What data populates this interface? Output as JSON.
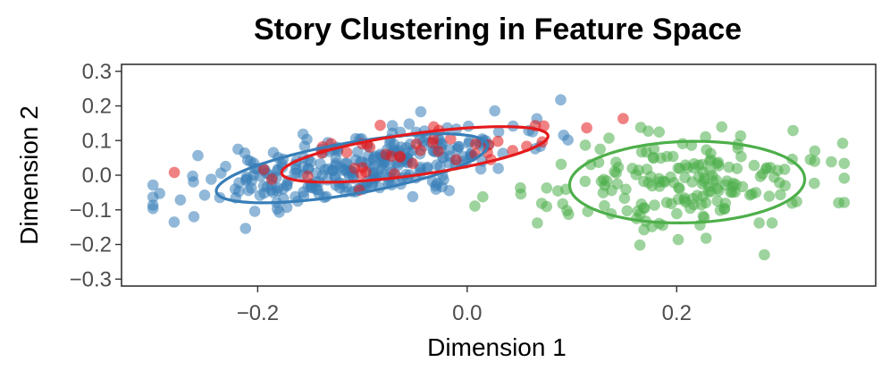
{
  "chart_data": {
    "type": "scatter",
    "title": "Story Clustering in Feature Space",
    "xlabel": "Dimension 1",
    "ylabel": "Dimension 2",
    "xlim": [
      -0.33,
      0.39
    ],
    "ylim": [
      -0.32,
      0.32
    ],
    "x_ticks": [
      -0.2,
      0.0,
      0.2
    ],
    "x_tick_labels": [
      "−0.2",
      "0.0",
      "0.2"
    ],
    "y_ticks": [
      0.3,
      0.2,
      0.1,
      0.0,
      -0.1,
      -0.2,
      -0.3
    ],
    "y_tick_labels": [
      "0.3",
      "0.2",
      "0.1",
      "0.0",
      "−0.1",
      "−0.2",
      "−0.3"
    ],
    "grid": false,
    "legend": "none",
    "point_opacity": 0.55,
    "series": [
      {
        "color": "#377eb8",
        "count": 300,
        "ellipse": {
          "center": [
            -0.11,
            0.02
          ],
          "semi_axes": [
            0.15,
            0.065
          ],
          "angle_deg": 34
        }
      },
      {
        "color": "#e41a1c",
        "count": 45,
        "ellipse": {
          "center": [
            -0.05,
            0.06
          ],
          "semi_axes": [
            0.14,
            0.055
          ],
          "angle_deg": 27
        }
      },
      {
        "color": "#4daf4a",
        "count": 185,
        "ellipse": {
          "center": [
            0.21,
            -0.02
          ],
          "semi_axes": [
            0.11,
            0.12
          ],
          "angle_deg": -28
        }
      }
    ]
  }
}
